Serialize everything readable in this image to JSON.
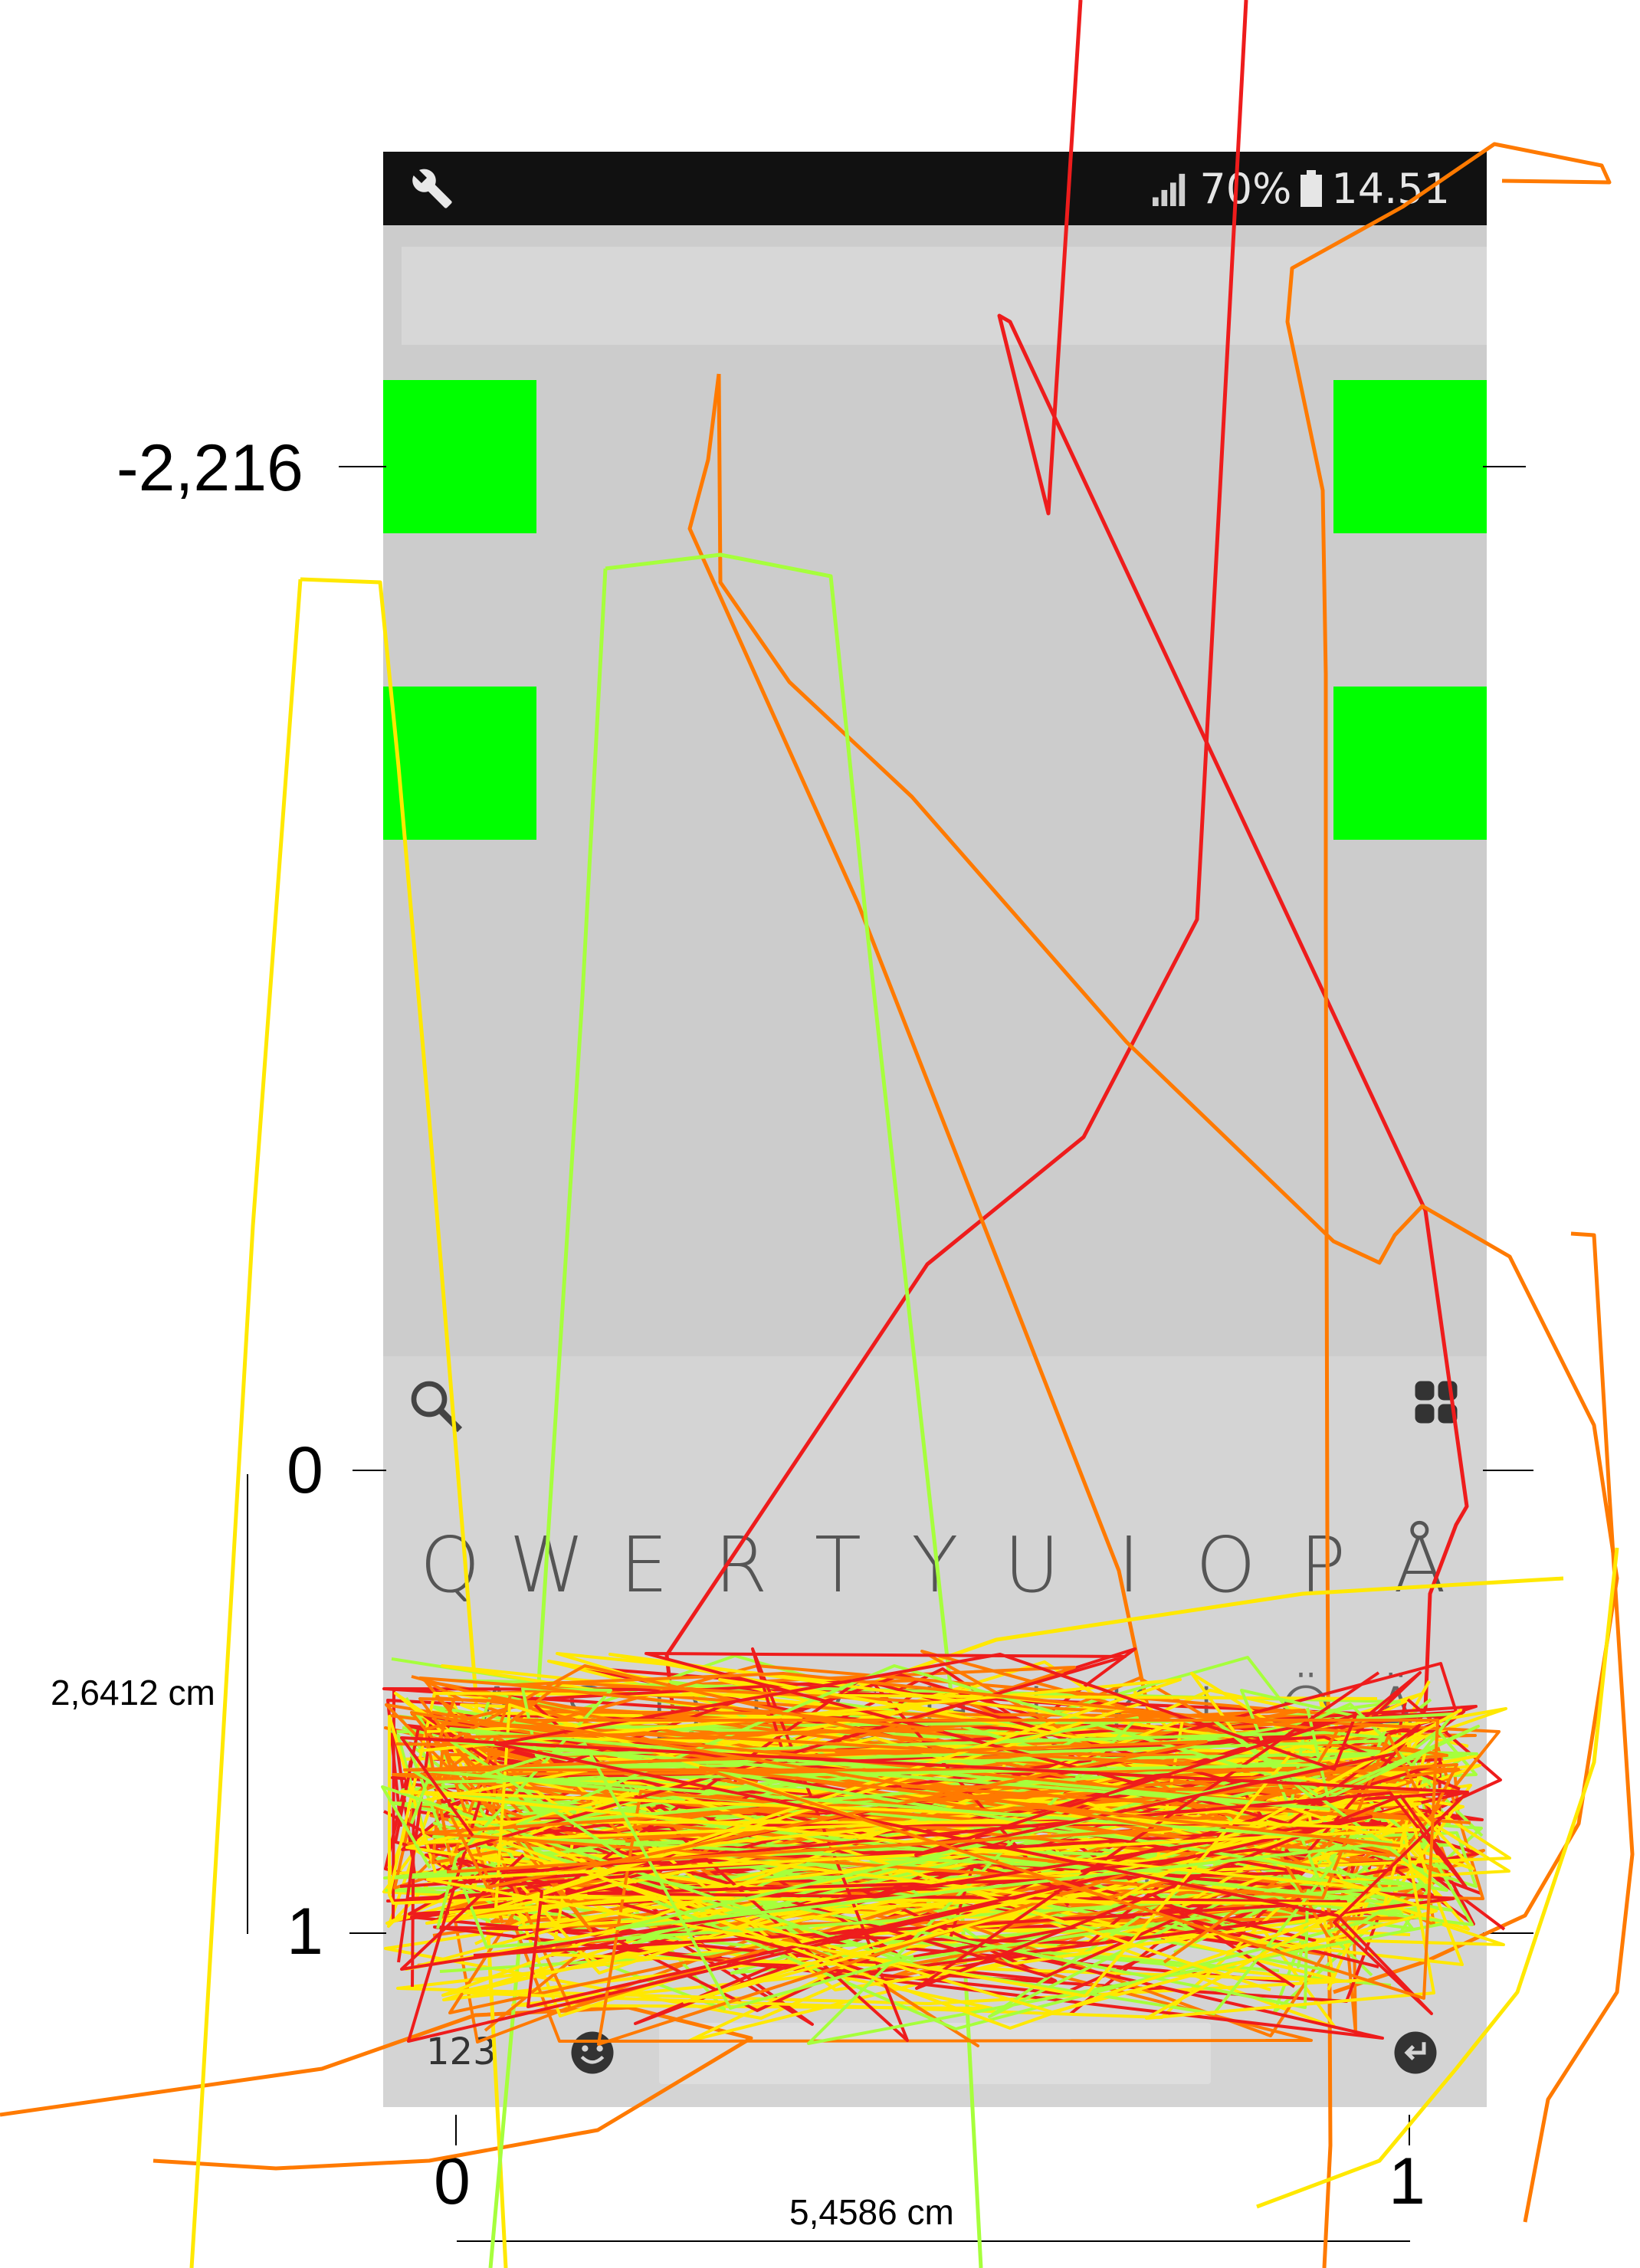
{
  "status_bar": {
    "battery_percent": "70%",
    "time": "14.51",
    "icons": [
      "wrench-icon",
      "signal-icon",
      "battery-icon"
    ]
  },
  "keyboard": {
    "row1": [
      "Q",
      "W",
      "E",
      "R",
      "T",
      "Y",
      "U",
      "I",
      "O",
      "P",
      "Å"
    ],
    "row2": [
      "A",
      "S",
      "D",
      "F",
      "G",
      "H",
      "J",
      "K",
      "L",
      "Ö",
      "Ä"
    ],
    "row3": [
      "Z",
      "X",
      "C",
      "V",
      "B",
      "N",
      "M"
    ],
    "mode_key": "123",
    "icons": [
      "search-icon",
      "grid-icon",
      "emoji-icon",
      "enter-icon"
    ]
  },
  "annotations": {
    "y_tick_top": "-2,216",
    "y_tick_zero": "0",
    "y_tick_one": "1",
    "x_tick_zero": "0",
    "x_tick_one": "1",
    "height_label": "2,6412 cm",
    "width_label": "5,4586 cm"
  },
  "colors": {
    "target": "#00ff00",
    "trajectory_red": "#ee1c1c",
    "trajectory_orange": "#ff7a00",
    "trajectory_yellow": "#ffe800",
    "trajectory_green": "#a6ff3c"
  }
}
